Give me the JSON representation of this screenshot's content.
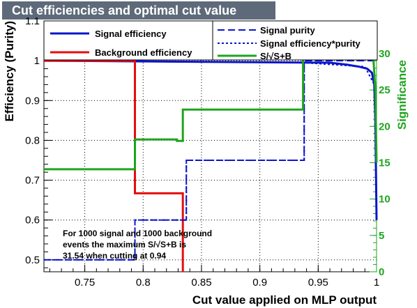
{
  "chart_data": {
    "type": "line",
    "title": "Cut efficiencies and optimal cut value",
    "xlabel": "Cut value applied on MLP output",
    "ylabel": "Efficiency (Purity)",
    "y2label": "Significance",
    "xlim": [
      0.715,
      1.0
    ],
    "ylim": [
      0.47,
      1.1
    ],
    "y2lim": [
      0,
      34.5
    ],
    "x_ticks": [
      "0.75",
      "0.8",
      "0.85",
      "0.9",
      "0.95",
      "1"
    ],
    "y_ticks": [
      "0.5",
      "0.6",
      "0.7",
      "0.8",
      "0.9",
      "1",
      "1.1"
    ],
    "y2_ticks": [
      "0",
      "5",
      "10",
      "15",
      "20",
      "25",
      "30"
    ],
    "grid": true,
    "series": [
      {
        "name": "Signal efficiency",
        "color": "#0a14cd",
        "style": "solid",
        "axis": "left",
        "points": [
          [
            0.715,
            1.0
          ],
          [
            0.96,
            0.995
          ],
          [
            0.975,
            0.99
          ],
          [
            0.985,
            0.985
          ],
          [
            0.992,
            0.98
          ],
          [
            0.996,
            0.97
          ],
          [
            0.998,
            0.94
          ],
          [
            0.999,
            0.85
          ],
          [
            1.0,
            0.6
          ]
        ]
      },
      {
        "name": "Background efficiency",
        "color": "#e60d0d",
        "style": "solid",
        "axis": "left",
        "points": [
          [
            0.715,
            1.0
          ],
          [
            0.793,
            1.0
          ],
          [
            0.793,
            0.667
          ],
          [
            0.834,
            0.667
          ],
          [
            0.834,
            0.47
          ]
        ]
      },
      {
        "name": "Signal purity",
        "color": "#0a14cd",
        "style": "longdash",
        "axis": "left",
        "points": [
          [
            0.715,
            0.5
          ],
          [
            0.793,
            0.5
          ],
          [
            0.793,
            0.6
          ],
          [
            0.837,
            0.6
          ],
          [
            0.837,
            0.75
          ],
          [
            0.938,
            0.75
          ],
          [
            0.938,
            1.0
          ],
          [
            1.0,
            1.0
          ]
        ]
      },
      {
        "name": "Signal efficiency*purity",
        "color": "#0a14cd",
        "style": "dotted",
        "axis": "left",
        "points": [
          [
            0.715,
            0.5
          ],
          [
            0.793,
            0.5
          ],
          [
            0.793,
            0.6
          ],
          [
            0.837,
            0.6
          ],
          [
            0.837,
            0.75
          ],
          [
            0.938,
            0.75
          ],
          [
            0.938,
            0.995
          ],
          [
            0.99,
            0.985
          ],
          [
            0.998,
            0.94
          ],
          [
            1.0,
            0.6
          ]
        ]
      },
      {
        "name": "S/√S+B",
        "color": "#1ea51e",
        "style": "solid",
        "axis": "right",
        "points": [
          [
            0.715,
            14.1
          ],
          [
            0.793,
            14.1
          ],
          [
            0.793,
            18.2
          ],
          [
            0.829,
            18.2
          ],
          [
            0.829,
            18.0
          ],
          [
            0.834,
            18.0
          ],
          [
            0.834,
            22.3
          ],
          [
            0.937,
            22.3
          ],
          [
            0.937,
            31.5
          ],
          [
            0.997,
            31.5
          ],
          [
            0.997,
            30.0
          ],
          [
            0.999,
            25.0
          ],
          [
            1.0,
            15.0
          ]
        ]
      }
    ],
    "annotation": {
      "lines": [
        "For 1000 signal and 1000 background",
        "events the maximum S/√S+B is",
        "31.54 when cutting at  0.94"
      ]
    }
  }
}
